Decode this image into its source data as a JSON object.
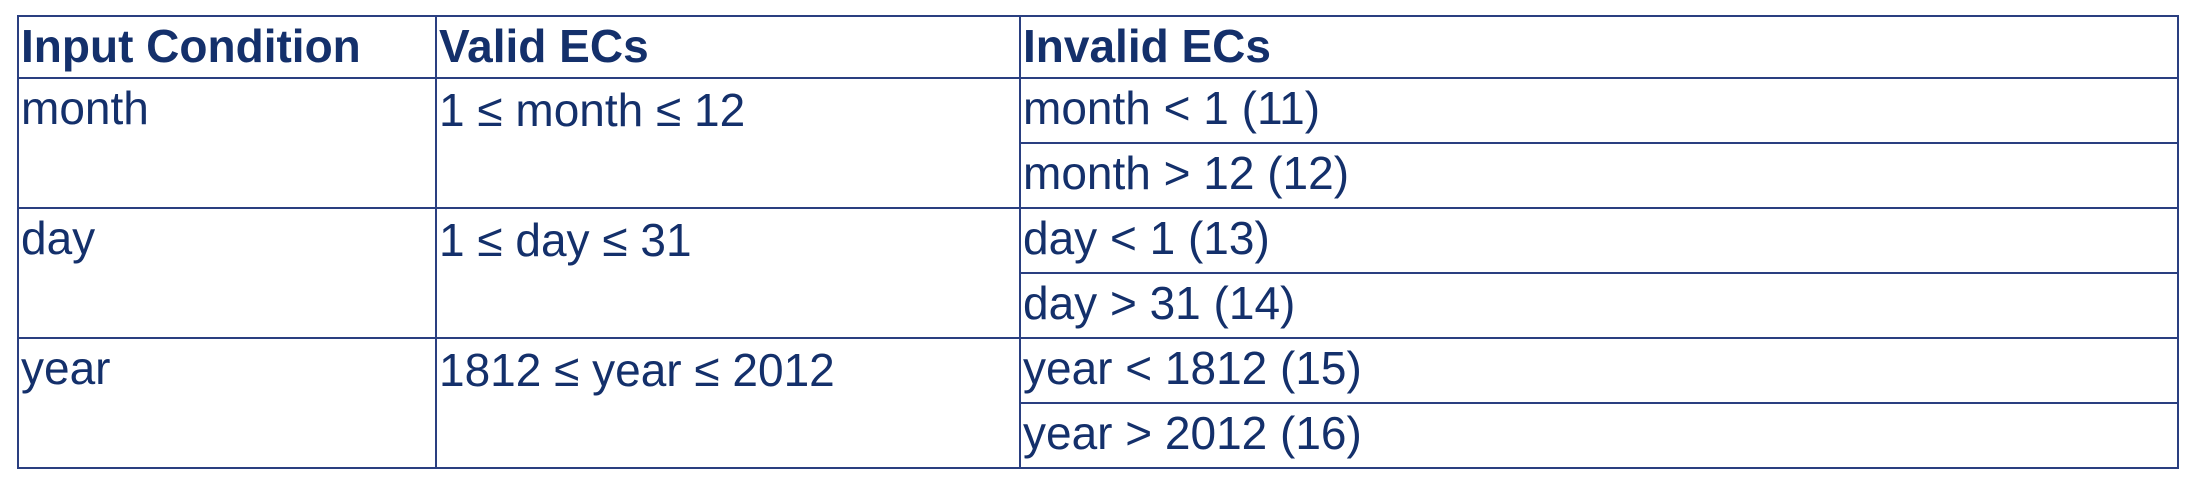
{
  "table": {
    "header": [
      "Input Condition",
      "Valid ECs",
      "Invalid ECs"
    ],
    "rows": [
      {
        "condition": "month",
        "valid": "1 ≤ month ≤ 12",
        "invalid": [
          "month < 1 (11)",
          "month > 12 (12)"
        ]
      },
      {
        "condition": "day",
        "valid": "1 ≤ day ≤ 31",
        "invalid": [
          "day < 1 (13)",
          "day > 31 (14)"
        ]
      },
      {
        "condition": "year",
        "valid": "1812 ≤ year ≤ 2012",
        "invalid": [
          "year < 1812 (15)",
          "year > 2012 (16)"
        ]
      }
    ]
  }
}
